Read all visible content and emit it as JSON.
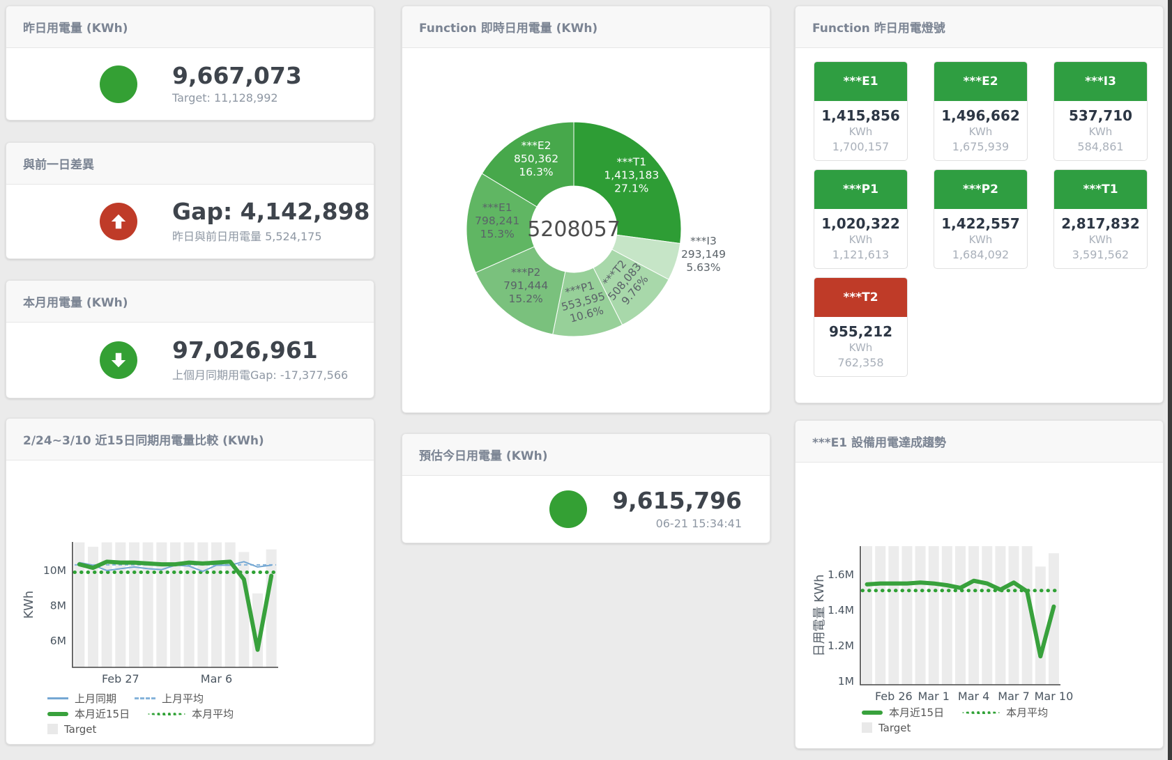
{
  "colors": {
    "green_primary": "#34a034",
    "red": "#bf3b28",
    "blue_line": "#74a7d3",
    "blue_dash": "#85b3da",
    "green_line": "#38a13c",
    "target_bar": "#ececec",
    "axis": "#444444",
    "tick_text": "#4a5560"
  },
  "cards": {
    "yesterday": {
      "title": "昨日用電量 (KWh)",
      "value": "9,667,073",
      "subtitle": "Target: 11,128,992"
    },
    "gap_prev_day": {
      "title": "與前一日差異",
      "value": "Gap: 4,142,898",
      "subtitle": "昨日與前日用電量 5,524,175"
    },
    "month": {
      "title": "本月用電量 (KWh)",
      "value": "97,026,961",
      "subtitle": "上個月同期用電Gap: -17,377,566"
    },
    "compare15": {
      "title": "2/24~3/10 近15日同期用電量比較 (KWh)"
    },
    "realtime_donut": {
      "title": "Function 即時日用電量 (KWh)"
    },
    "estimate_today": {
      "title": "預估今日用電量 (KWh)",
      "value": "9,615,796",
      "subtitle": "06-21 15:34:41"
    },
    "lamp_panel": {
      "title": "Function 昨日用電燈號"
    },
    "e1_trend": {
      "title": "***E1 設備用電達成趨勢"
    }
  },
  "lamp_tiles": [
    {
      "name": "***E1",
      "value": "1,415,856",
      "unit": "KWh",
      "target": "1,700,157",
      "status": "green"
    },
    {
      "name": "***E2",
      "value": "1,496,662",
      "unit": "KWh",
      "target": "1,675,939",
      "status": "green"
    },
    {
      "name": "***I3",
      "value": "537,710",
      "unit": "KWh",
      "target": "584,861",
      "status": "green"
    },
    {
      "name": "***P1",
      "value": "1,020,322",
      "unit": "KWh",
      "target": "1,121,613",
      "status": "green"
    },
    {
      "name": "***P2",
      "value": "1,422,557",
      "unit": "KWh",
      "target": "1,684,092",
      "status": "green"
    },
    {
      "name": "***T1",
      "value": "2,817,832",
      "unit": "KWh",
      "target": "3,591,562",
      "status": "green"
    },
    {
      "name": "***T2",
      "value": "955,212",
      "unit": "KWh",
      "target": "762,358",
      "status": "red"
    }
  ],
  "chart_data": [
    {
      "type": "pie",
      "title": "Function 即時日用電量 (KWh)",
      "center_total": "5208057",
      "legend_position": "none",
      "slices": [
        {
          "name": "***T1",
          "value": 1413183,
          "value_label": "1,413,183",
          "pct": "27.1%",
          "pct_value": 27.1,
          "color": "#2e9d35",
          "label_color": "#ffffff"
        },
        {
          "name": "***I3",
          "value": 293149,
          "value_label": "293,149",
          "pct": "5.63%",
          "pct_value": 5.63,
          "color": "#c6e5c7",
          "label_color": "#5a6268",
          "label_outside": true
        },
        {
          "name": "***T2",
          "value": 508083,
          "value_label": "508,083",
          "pct": "9.76%",
          "pct_value": 9.76,
          "color": "#a8d8aa",
          "label_color": "#5a6268",
          "label_rotate": -50
        },
        {
          "name": "***P1",
          "value": 553595,
          "value_label": "553,595",
          "pct": "10.6%",
          "pct_value": 10.6,
          "color": "#97d099",
          "label_color": "#5a6268",
          "label_rotate": -15
        },
        {
          "name": "***P2",
          "value": 791444,
          "value_label": "791,444",
          "pct": "15.2%",
          "pct_value": 15.2,
          "color": "#7ac17d",
          "label_color": "#5a6268"
        },
        {
          "name": "***E1",
          "value": 798241,
          "value_label": "798,241",
          "pct": "15.3%",
          "pct_value": 15.3,
          "color": "#60b663",
          "label_color": "#5a6268"
        },
        {
          "name": "***E2",
          "value": 850362,
          "value_label": "850,362",
          "pct": "16.3%",
          "pct_value": 16.3,
          "color": "#47a84b",
          "label_color": "#ffffff"
        }
      ]
    },
    {
      "type": "line+bar",
      "title": "2/24~3/10 近15日同期用電量比較 (KWh)",
      "ylabel": "KWh",
      "unit": "M",
      "ylim": [
        4.5,
        11.62
      ],
      "grid": false,
      "yticks": [
        {
          "v": 6,
          "label": "6M"
        },
        {
          "v": 8,
          "label": "8M"
        },
        {
          "v": 10,
          "label": "10M"
        }
      ],
      "xticks": [
        {
          "i": 3,
          "label": "Feb 27"
        },
        {
          "i": 10,
          "label": "Mar 6"
        }
      ],
      "target_bars": [
        11.6,
        11.35,
        11.6,
        11.6,
        11.6,
        11.6,
        11.6,
        11.6,
        11.6,
        11.6,
        11.6,
        11.6,
        11.05,
        8.7,
        11.2
      ],
      "series": [
        {
          "name": "上月同期",
          "color": "#74a7d3",
          "width": 2,
          "values": [
            10.45,
            10.3,
            10.0,
            10.1,
            10.2,
            10.1,
            10.05,
            10.3,
            10.25,
            9.95,
            10.3,
            10.3,
            10.5,
            10.2,
            10.3
          ]
        },
        {
          "name": "本月近15日",
          "color": "#38a13c",
          "width": 6,
          "values": [
            10.35,
            10.15,
            10.5,
            10.45,
            10.45,
            10.4,
            10.35,
            10.35,
            10.45,
            10.4,
            10.45,
            10.5,
            9.5,
            5.5,
            9.7
          ]
        }
      ],
      "avg_lines": [
        {
          "name": "上月平均",
          "value": 10.32,
          "color": "#85b3da",
          "style": "dash"
        },
        {
          "name": "本月平均",
          "value": 9.9,
          "color": "#2fa135",
          "style": "dot"
        }
      ],
      "legend": [
        [
          {
            "swatch": "line",
            "color": "#74a7d3",
            "label": "上月同期"
          },
          {
            "swatch": "dash",
            "color": "#85b3da",
            "label": "上月平均"
          }
        ],
        [
          {
            "swatch": "thick",
            "color": "#38a13c",
            "label": "本月近15日"
          },
          {
            "swatch": "dot",
            "color": "#2fa135",
            "label": "本月平均"
          }
        ],
        [
          {
            "swatch": "square",
            "color": "#e9e9e9",
            "label": "Target"
          }
        ]
      ]
    },
    {
      "type": "line+bar",
      "title": "***E1 設備用電達成趨勢",
      "ylabel": "日用電量 KWh",
      "unit": "M",
      "ylim": [
        0.98,
        1.76
      ],
      "grid": false,
      "yticks": [
        {
          "v": 1,
          "label": "1M"
        },
        {
          "v": 1.2,
          "label": "1.2M"
        },
        {
          "v": 1.4,
          "label": "1.4M"
        },
        {
          "v": 1.6,
          "label": "1.6M"
        }
      ],
      "xticks": [
        {
          "i": 2,
          "label": "Feb 26"
        },
        {
          "i": 5,
          "label": "Mar 1"
        },
        {
          "i": 8,
          "label": "Mar 4"
        },
        {
          "i": 11,
          "label": "Mar 7"
        },
        {
          "i": 14,
          "label": "Mar 10"
        }
      ],
      "target_bars": [
        1.76,
        1.76,
        1.76,
        1.76,
        1.76,
        1.76,
        1.76,
        1.76,
        1.76,
        1.76,
        1.76,
        1.76,
        1.76,
        1.645,
        1.72
      ],
      "series": [
        {
          "name": "本月近15日",
          "color": "#38a13c",
          "width": 6,
          "values": [
            1.545,
            1.55,
            1.55,
            1.55,
            1.555,
            1.55,
            1.54,
            1.525,
            1.565,
            1.55,
            1.515,
            1.555,
            1.505,
            1.14,
            1.42
          ]
        }
      ],
      "avg_lines": [
        {
          "name": "本月平均",
          "value": 1.51,
          "color": "#2fa135",
          "style": "dot"
        }
      ],
      "legend": [
        [
          {
            "swatch": "thick",
            "color": "#38a13c",
            "label": "本月近15日"
          },
          {
            "swatch": "dot",
            "color": "#2fa135",
            "label": "本月平均"
          }
        ],
        [
          {
            "swatch": "square",
            "color": "#e9e9e9",
            "label": "Target"
          }
        ]
      ]
    }
  ]
}
